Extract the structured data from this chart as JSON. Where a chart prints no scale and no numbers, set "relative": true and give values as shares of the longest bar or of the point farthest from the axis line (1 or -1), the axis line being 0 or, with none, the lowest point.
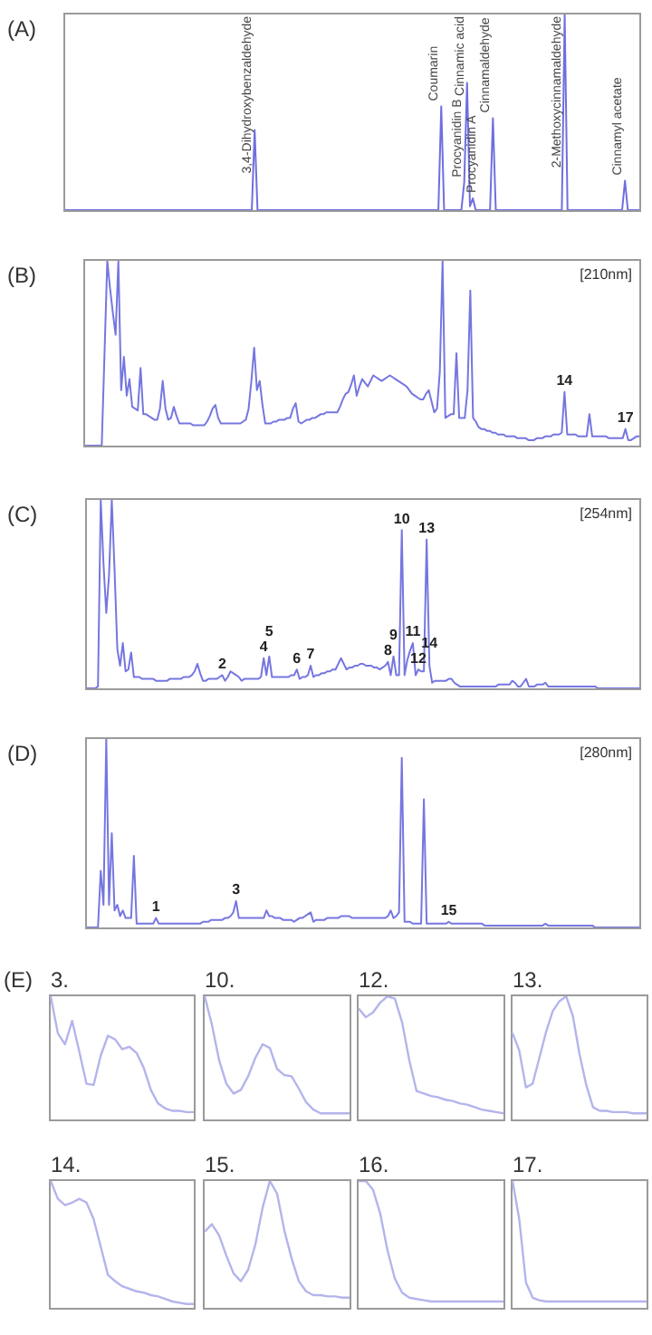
{
  "chart_data": [
    {
      "type": "line",
      "title": "(A)",
      "relative": true,
      "tick_labels": false,
      "annotations": [
        "3,4-Dihydroxybenzaldehyde",
        "Coumarin",
        "Procyanidin B",
        "Cinnamic acid",
        "Procyanidin A",
        "Cinnamaldehyde",
        "2-Methoxycinnamaldehyde",
        "Cinnamyl acetate"
      ],
      "categories": [
        null,
        null,
        null,
        null,
        null,
        null,
        null,
        null,
        null,
        null,
        null,
        null,
        null,
        null,
        null,
        null,
        null,
        null,
        null,
        null,
        null,
        null,
        null,
        null,
        null,
        null,
        null,
        null,
        null,
        null,
        null,
        null,
        null,
        null,
        null,
        null,
        null,
        null,
        null,
        null,
        null,
        null,
        null,
        null,
        null,
        null,
        null,
        null,
        null,
        null,
        null,
        null,
        null,
        null,
        null,
        null,
        null,
        null,
        null,
        null,
        null,
        null,
        null,
        null,
        null,
        null,
        null,
        null,
        null,
        null,
        null,
        null,
        null,
        null,
        null,
        null,
        null,
        null,
        null,
        null,
        null,
        null,
        null,
        null,
        null,
        null,
        null,
        null,
        null,
        null,
        null,
        null,
        null,
        null,
        null,
        null,
        null,
        null,
        null,
        null,
        null,
        null,
        null,
        null,
        null,
        null,
        null,
        null,
        null,
        null,
        null,
        null,
        null,
        null,
        null,
        null,
        null,
        null,
        null,
        null,
        null,
        null,
        null,
        null,
        null,
        null,
        null,
        null,
        null,
        null,
        null,
        null,
        null,
        null,
        null,
        null,
        null,
        null,
        null,
        null,
        null,
        null,
        null,
        null,
        null,
        null,
        null,
        null,
        null,
        null,
        null,
        null,
        null,
        null,
        null,
        null,
        null,
        null,
        null,
        null,
        null,
        null,
        null,
        null,
        null,
        null,
        null,
        null,
        null,
        null,
        null,
        null,
        null,
        null,
        null,
        null,
        null,
        null,
        null,
        null,
        null,
        null,
        null,
        null,
        null,
        null,
        null,
        null,
        null,
        null,
        null,
        null,
        null,
        null,
        null,
        null,
        null,
        null,
        null,
        null,
        null
      ],
      "series": [
        {
          "color": "#6f6fe0",
          "values": [
            0,
            0,
            0,
            0,
            0,
            0,
            0,
            0,
            0,
            0,
            0,
            0,
            0,
            0,
            0,
            0,
            0,
            0,
            0,
            0,
            0,
            0,
            0,
            0,
            0,
            0,
            0,
            0,
            0,
            0,
            0,
            0,
            0,
            0,
            0,
            0,
            0,
            0,
            0,
            0,
            0,
            0,
            0,
            0,
            0,
            0,
            0,
            0,
            0,
            0,
            0,
            0,
            0,
            0,
            0,
            0,
            0,
            0,
            0,
            0,
            0,
            0,
            0,
            0,
            0,
            0,
            0.41,
            0,
            0,
            0,
            0,
            0,
            0,
            0,
            0,
            0,
            0,
            0,
            0,
            0,
            0,
            0,
            0,
            0,
            0,
            0,
            0,
            0,
            0,
            0,
            0,
            0,
            0,
            0,
            0,
            0,
            0,
            0,
            0,
            0,
            0,
            0,
            0,
            0,
            0,
            0,
            0,
            0,
            0,
            0,
            0,
            0,
            0,
            0,
            0,
            0,
            0,
            0,
            0,
            0,
            0,
            0,
            0,
            0,
            0,
            0,
            0,
            0,
            0,
            0,
            0,
            0.53,
            0,
            0,
            0,
            0,
            0,
            0,
            0,
            0.14,
            0.65,
            0.02,
            0.06,
            0,
            0,
            0,
            0,
            0,
            0,
            0.47,
            0,
            0,
            0,
            0,
            0,
            0,
            0,
            0,
            0,
            0,
            0,
            0,
            0,
            0,
            0,
            0,
            0,
            0,
            0,
            0,
            0,
            0,
            0,
            0,
            1,
            0,
            0,
            0,
            0,
            0,
            0,
            0,
            0,
            0,
            0,
            0,
            0,
            0,
            0,
            0,
            0,
            0,
            0,
            0,
            0,
            0.15,
            0,
            0,
            0,
            0,
            0
          ]
        }
      ]
    },
    {
      "type": "line",
      "title": "(B)",
      "relative": true,
      "tick_labels": false,
      "annotations": [
        "[210nm]",
        "14",
        "17"
      ],
      "categories": [
        null,
        null,
        null,
        null,
        null,
        null,
        null,
        null,
        null,
        null,
        null,
        null,
        null,
        null,
        null,
        null,
        null,
        null,
        null,
        null,
        null,
        null,
        null,
        null,
        null,
        null,
        null,
        null,
        null,
        null,
        null,
        null,
        null,
        null,
        null,
        null,
        null,
        null,
        null,
        null,
        null,
        null,
        null,
        null,
        null,
        null,
        null,
        null,
        null,
        null,
        null,
        null,
        null,
        null,
        null,
        null,
        null,
        null,
        null,
        null,
        null,
        null,
        null,
        null,
        null,
        null,
        null,
        null,
        null,
        null,
        null,
        null,
        null,
        null,
        null,
        null,
        null,
        null,
        null,
        null,
        null,
        null,
        null,
        null,
        null,
        null,
        null,
        null,
        null,
        null,
        null,
        null,
        null,
        null,
        null,
        null,
        null,
        null,
        null,
        null,
        null,
        null,
        null,
        null,
        null,
        null,
        null,
        null,
        null,
        null,
        null,
        null,
        null,
        null,
        null,
        null,
        null,
        null,
        null,
        null,
        null,
        null,
        null,
        null,
        null,
        null,
        null,
        null,
        null,
        null,
        null,
        null,
        null,
        null,
        null,
        null,
        null,
        null,
        null,
        null,
        null,
        null,
        null,
        null,
        null,
        null,
        null,
        null,
        null,
        null,
        null,
        null,
        null,
        null,
        null,
        null,
        null,
        null,
        null,
        null,
        null,
        null,
        null,
        null,
        null,
        null,
        null,
        null,
        null,
        null,
        null,
        null,
        null,
        null,
        null,
        null,
        null,
        null,
        null,
        null,
        null,
        null,
        null,
        null,
        null,
        null,
        null,
        null,
        null,
        null,
        null,
        null,
        null,
        null,
        null,
        null,
        null,
        null,
        null,
        null,
        null
      ],
      "series": [
        {
          "color": "#7676e0",
          "values": [
            0,
            0,
            0,
            0,
            0,
            0,
            0,
            0.5,
            1,
            0.85,
            0.72,
            0.6,
            1,
            0.3,
            0.48,
            0.27,
            0.36,
            0.21,
            0.2,
            0.19,
            0.42,
            0.17,
            0.17,
            0.16,
            0.15,
            0.14,
            0.14,
            0.2,
            0.35,
            0.2,
            0.14,
            0.15,
            0.21,
            0.16,
            0.12,
            0.12,
            0.12,
            0.12,
            0.12,
            0.11,
            0.11,
            0.11,
            0.11,
            0.11,
            0.13,
            0.16,
            0.2,
            0.22,
            0.15,
            0.12,
            0.12,
            0.12,
            0.12,
            0.12,
            0.12,
            0.12,
            0.12,
            0.13,
            0.14,
            0.2,
            0.35,
            0.53,
            0.3,
            0.35,
            0.22,
            0.12,
            0.12,
            0.12,
            0.13,
            0.13,
            0.14,
            0.14,
            0.14,
            0.15,
            0.15,
            0.2,
            0.23,
            0.13,
            0.12,
            0.13,
            0.14,
            0.14,
            0.15,
            0.15,
            0.16,
            0.17,
            0.17,
            0.18,
            0.18,
            0.18,
            0.18,
            0.18,
            0.21,
            0.25,
            0.28,
            0.29,
            0.33,
            0.38,
            0.27,
            0.32,
            0.36,
            0.34,
            0.32,
            0.35,
            0.38,
            0.37,
            0.36,
            0.35,
            0.36,
            0.37,
            0.38,
            0.37,
            0.36,
            0.35,
            0.34,
            0.33,
            0.32,
            0.3,
            0.28,
            0.27,
            0.26,
            0.25,
            0.25,
            0.28,
            0.3,
            0.24,
            0.18,
            0.2,
            0.4,
            1,
            0.15,
            0.16,
            0.17,
            0.17,
            0.5,
            0.15,
            0.15,
            0.15,
            0.3,
            0.84,
            0.15,
            0.13,
            0.1,
            0.09,
            0.09,
            0.08,
            0.08,
            0.07,
            0.07,
            0.06,
            0.06,
            0.06,
            0.05,
            0.05,
            0.05,
            0.05,
            0.04,
            0.04,
            0.04,
            0.04,
            0.03,
            0.03,
            0.03,
            0.04,
            0.04,
            0.04,
            0.05,
            0.05,
            0.05,
            0.06,
            0.06,
            0.06,
            0.07,
            0.29,
            0.06,
            0.06,
            0.06,
            0.06,
            0.05,
            0.05,
            0.05,
            0.05,
            0.17,
            0.05,
            0.05,
            0.05,
            0.05,
            0.05,
            0.05,
            0.04,
            0.04,
            0.04,
            0.04,
            0.04,
            0.04,
            0.09,
            0.03,
            0.03,
            0.04,
            0.05,
            0.05
          ]
        }
      ]
    },
    {
      "type": "line",
      "title": "(C)",
      "relative": true,
      "tick_labels": false,
      "annotations": [
        "[254nm]",
        "2",
        "4",
        "5",
        "6",
        "7",
        "8",
        "9",
        "10",
        "11",
        "12",
        "13",
        "14"
      ],
      "categories": [
        null,
        null,
        null,
        null,
        null,
        null,
        null,
        null,
        null,
        null,
        null,
        null,
        null,
        null,
        null,
        null,
        null,
        null,
        null,
        null,
        null,
        null,
        null,
        null,
        null,
        null,
        null,
        null,
        null,
        null,
        null,
        null,
        null,
        null,
        null,
        null,
        null,
        null,
        null,
        null,
        null,
        null,
        null,
        null,
        null,
        null,
        null,
        null,
        null,
        null,
        null,
        null,
        null,
        null,
        null,
        null,
        null,
        null,
        null,
        null,
        null,
        null,
        null,
        null,
        null,
        null,
        null,
        null,
        null,
        null,
        null,
        null,
        null,
        null,
        null,
        null,
        null,
        null,
        null,
        null,
        null,
        null,
        null,
        null,
        null,
        null,
        null,
        null,
        null,
        null,
        null,
        null,
        null,
        null,
        null,
        null,
        null,
        null,
        null,
        null,
        null,
        null,
        null,
        null,
        null,
        null,
        null,
        null,
        null,
        null,
        null,
        null,
        null,
        null,
        null,
        null,
        null,
        null,
        null,
        null,
        null,
        null,
        null,
        null,
        null,
        null,
        null,
        null,
        null,
        null,
        null,
        null,
        null,
        null,
        null,
        null,
        null,
        null,
        null,
        null,
        null,
        null,
        null,
        null,
        null,
        null,
        null,
        null,
        null,
        null,
        null,
        null,
        null,
        null,
        null,
        null,
        null,
        null,
        null,
        null,
        null,
        null,
        null,
        null,
        null,
        null,
        null,
        null,
        null,
        null,
        null,
        null,
        null,
        null,
        null,
        null,
        null,
        null,
        null,
        null,
        null,
        null,
        null,
        null,
        null,
        null,
        null,
        null,
        null,
        null,
        null,
        null,
        null,
        null,
        null,
        null,
        null,
        null,
        null,
        null,
        null
      ],
      "series": [
        {
          "color": "#7676e0",
          "values": [
            0,
            0,
            0,
            0,
            0.01,
            1,
            0.66,
            0.4,
            0.6,
            1,
            0.63,
            0.21,
            0.12,
            0.24,
            0.09,
            0.1,
            0.19,
            0.06,
            0.06,
            0.06,
            0.05,
            0.05,
            0.05,
            0.05,
            0.05,
            0.04,
            0.04,
            0.04,
            0.04,
            0.04,
            0.05,
            0.05,
            0.05,
            0.05,
            0.05,
            0.06,
            0.06,
            0.06,
            0.07,
            0.09,
            0.13,
            0.08,
            0.04,
            0.04,
            0.05,
            0.05,
            0.05,
            0.05,
            0.06,
            0.07,
            0.04,
            0.06,
            0.09,
            0.08,
            0.07,
            0.06,
            0.04,
            0.05,
            0.05,
            0.05,
            0.05,
            0.05,
            0.05,
            0.06,
            0.16,
            0.07,
            0.17,
            0.06,
            0.06,
            0.06,
            0.06,
            0.06,
            0.06,
            0.06,
            0.07,
            0.07,
            0.1,
            0.05,
            0.06,
            0.06,
            0.07,
            0.12,
            0.06,
            0.07,
            0.07,
            0.08,
            0.08,
            0.09,
            0.09,
            0.1,
            0.1,
            0.13,
            0.16,
            0.13,
            0.1,
            0.11,
            0.11,
            0.12,
            0.12,
            0.13,
            0.13,
            0.12,
            0.12,
            0.12,
            0.11,
            0.11,
            0.1,
            0.11,
            0.12,
            0.14,
            0.07,
            0.17,
            0.07,
            0.07,
            0.84,
            0.07,
            0.15,
            0.2,
            0.24,
            0.07,
            0.1,
            0.09,
            0.09,
            0.79,
            0.12,
            0.03,
            0.04,
            0.04,
            0.04,
            0.04,
            0.04,
            0.05,
            0.05,
            0.03,
            0.02,
            0.01,
            0.01,
            0.01,
            0.01,
            0.01,
            0.01,
            0.01,
            0.01,
            0.01,
            0.01,
            0.01,
            0.01,
            0.01,
            0.01,
            0.02,
            0.02,
            0.02,
            0.02,
            0.02,
            0.04,
            0.03,
            0.01,
            0.01,
            0.03,
            0.05,
            0.01,
            0.01,
            0.01,
            0.02,
            0.02,
            0.02,
            0.03,
            0.01,
            0.01,
            0.01,
            0.01,
            0.01,
            0.01,
            0.01,
            0.01,
            0.01,
            0.01,
            0.01,
            0.01,
            0.01,
            0.01,
            0.01,
            0.01,
            0.01,
            0.01,
            0,
            0,
            0,
            0,
            0,
            0,
            0,
            0,
            0,
            0,
            0,
            0,
            0,
            0,
            0,
            0
          ]
        }
      ]
    },
    {
      "type": "line",
      "title": "(D)",
      "relative": true,
      "tick_labels": false,
      "annotations": [
        "[280nm]",
        "1",
        "3",
        "15"
      ],
      "categories": [
        null,
        null,
        null,
        null,
        null,
        null,
        null,
        null,
        null,
        null,
        null,
        null,
        null,
        null,
        null,
        null,
        null,
        null,
        null,
        null,
        null,
        null,
        null,
        null,
        null,
        null,
        null,
        null,
        null,
        null,
        null,
        null,
        null,
        null,
        null,
        null,
        null,
        null,
        null,
        null,
        null,
        null,
        null,
        null,
        null,
        null,
        null,
        null,
        null,
        null,
        null,
        null,
        null,
        null,
        null,
        null,
        null,
        null,
        null,
        null,
        null,
        null,
        null,
        null,
        null,
        null,
        null,
        null,
        null,
        null,
        null,
        null,
        null,
        null,
        null,
        null,
        null,
        null,
        null,
        null,
        null,
        null,
        null,
        null,
        null,
        null,
        null,
        null,
        null,
        null,
        null,
        null,
        null,
        null,
        null,
        null,
        null,
        null,
        null,
        null,
        null,
        null,
        null,
        null,
        null,
        null,
        null,
        null,
        null,
        null,
        null,
        null,
        null,
        null,
        null,
        null,
        null,
        null,
        null,
        null,
        null,
        null,
        null,
        null,
        null,
        null,
        null,
        null,
        null,
        null,
        null,
        null,
        null,
        null,
        null,
        null,
        null,
        null,
        null,
        null,
        null,
        null,
        null,
        null,
        null,
        null,
        null,
        null,
        null,
        null,
        null,
        null,
        null,
        null,
        null,
        null,
        null,
        null,
        null,
        null,
        null,
        null,
        null,
        null,
        null,
        null,
        null,
        null,
        null,
        null,
        null,
        null,
        null,
        null,
        null,
        null,
        null,
        null,
        null,
        null,
        null,
        null,
        null,
        null,
        null,
        null,
        null,
        null,
        null,
        null,
        null,
        null,
        null,
        null,
        null,
        null,
        null,
        null,
        null,
        null,
        null
      ],
      "series": [
        {
          "color": "#7676e0",
          "values": [
            0,
            0,
            0,
            0,
            0,
            0.3,
            0.12,
            1,
            0.12,
            0.5,
            0.09,
            0.12,
            0.06,
            0.09,
            0.05,
            0.05,
            0.05,
            0.38,
            0.02,
            0.02,
            0.02,
            0.02,
            0.02,
            0.02,
            0.02,
            0.05,
            0.02,
            0.02,
            0.02,
            0.02,
            0.02,
            0.02,
            0.02,
            0.02,
            0.02,
            0.02,
            0.02,
            0.02,
            0.02,
            0.02,
            0.02,
            0.02,
            0.03,
            0.03,
            0.03,
            0.04,
            0.04,
            0.04,
            0.04,
            0.04,
            0.05,
            0.05,
            0.06,
            0.08,
            0.14,
            0.05,
            0.05,
            0.05,
            0.05,
            0.05,
            0.05,
            0.05,
            0.05,
            0.05,
            0.05,
            0.09,
            0.06,
            0.06,
            0.05,
            0.05,
            0.05,
            0.04,
            0.04,
            0.04,
            0.04,
            0.03,
            0.04,
            0.05,
            0.05,
            0.06,
            0.07,
            0.08,
            0.03,
            0.04,
            0.04,
            0.04,
            0.04,
            0.05,
            0.05,
            0.05,
            0.05,
            0.05,
            0.06,
            0.06,
            0.06,
            0.06,
            0.05,
            0.05,
            0.05,
            0.05,
            0.05,
            0.05,
            0.05,
            0.05,
            0.05,
            0.05,
            0.05,
            0.05,
            0.05,
            0.06,
            0.09,
            0.05,
            0.06,
            0.08,
            0.9,
            0.03,
            0.03,
            0.03,
            0.02,
            0.02,
            0.02,
            0.02,
            0.68,
            0.02,
            0.02,
            0.02,
            0.02,
            0.02,
            0.02,
            0.02,
            0.02,
            0.03,
            0.02,
            0.02,
            0.02,
            0.02,
            0.02,
            0.02,
            0.02,
            0.02,
            0.02,
            0.02,
            0.02,
            0.02,
            0.01,
            0.01,
            0.01,
            0.01,
            0.01,
            0.01,
            0.01,
            0.01,
            0.01,
            0.01,
            0.01,
            0.01,
            0.01,
            0.01,
            0.01,
            0.01,
            0.01,
            0.01,
            0.01,
            0.01,
            0.01,
            0.01,
            0.02,
            0.01,
            0.01,
            0.01,
            0.01,
            0.01,
            0.01,
            0.01,
            0.01,
            0.01,
            0.01,
            0.01,
            0.01,
            0.01,
            0.01,
            0.01,
            0.01,
            0.01,
            0,
            0,
            0,
            0,
            0,
            0,
            0,
            0,
            0,
            0,
            0,
            0,
            0,
            0,
            0,
            0,
            0
          ]
        }
      ]
    },
    {
      "type": "line",
      "title": "(E)",
      "subtitle": "3.",
      "relative": true,
      "tick_labels": false,
      "categories": [
        null,
        null,
        null,
        null,
        null,
        null,
        null,
        null,
        null,
        null,
        null,
        null,
        null,
        null,
        null,
        null,
        null,
        null,
        null,
        null,
        null
      ],
      "series": [
        {
          "color": "#b4b4ec",
          "values": [
            1,
            0.7,
            0.61,
            0.8,
            0.55,
            0.29,
            0.28,
            0.52,
            0.68,
            0.65,
            0.57,
            0.59,
            0.54,
            0.42,
            0.24,
            0.13,
            0.09,
            0.07,
            0.07,
            0.06,
            0.06
          ]
        }
      ]
    },
    {
      "type": "line",
      "title": "10.",
      "relative": true,
      "tick_labels": false,
      "categories": [
        null,
        null,
        null,
        null,
        null,
        null,
        null,
        null,
        null,
        null,
        null,
        null,
        null,
        null,
        null,
        null,
        null,
        null,
        null,
        null,
        null
      ],
      "series": [
        {
          "color": "#b4b4ec",
          "values": [
            1,
            0.77,
            0.48,
            0.29,
            0.21,
            0.24,
            0.35,
            0.5,
            0.61,
            0.58,
            0.41,
            0.36,
            0.35,
            0.25,
            0.14,
            0.08,
            0.05,
            0.05,
            0.05,
            0.05,
            0.05
          ]
        }
      ]
    },
    {
      "type": "line",
      "title": "12.",
      "relative": true,
      "tick_labels": false,
      "categories": [
        null,
        null,
        null,
        null,
        null,
        null,
        null,
        null,
        null,
        null,
        null,
        null,
        null,
        null,
        null,
        null,
        null,
        null,
        null,
        null,
        null
      ],
      "series": [
        {
          "color": "#b4b4ec",
          "values": [
            0.9,
            0.83,
            0.87,
            0.95,
            1,
            0.98,
            0.79,
            0.48,
            0.23,
            0.21,
            0.19,
            0.18,
            0.16,
            0.15,
            0.13,
            0.12,
            0.1,
            0.08,
            0.07,
            0.06,
            0.05
          ]
        }
      ]
    },
    {
      "type": "line",
      "title": "13.",
      "relative": true,
      "tick_labels": false,
      "categories": [
        null,
        null,
        null,
        null,
        null,
        null,
        null,
        null,
        null,
        null,
        null,
        null,
        null,
        null,
        null,
        null,
        null,
        null,
        null,
        null,
        null
      ],
      "series": [
        {
          "color": "#b4b4ec",
          "values": [
            0.7,
            0.56,
            0.26,
            0.29,
            0.5,
            0.71,
            0.88,
            0.96,
            1,
            0.84,
            0.53,
            0.28,
            0.1,
            0.07,
            0.07,
            0.06,
            0.06,
            0.06,
            0.05,
            0.05,
            0.05
          ]
        }
      ]
    },
    {
      "type": "line",
      "title": "14.",
      "relative": true,
      "tick_labels": false,
      "categories": [
        null,
        null,
        null,
        null,
        null,
        null,
        null,
        null,
        null,
        null,
        null,
        null,
        null,
        null,
        null,
        null,
        null,
        null,
        null,
        null,
        null
      ],
      "series": [
        {
          "color": "#b4b4ec",
          "values": [
            1,
            0.86,
            0.81,
            0.83,
            0.86,
            0.83,
            0.7,
            0.48,
            0.26,
            0.21,
            0.17,
            0.15,
            0.13,
            0.12,
            0.1,
            0.09,
            0.07,
            0.05,
            0.04,
            0.03,
            0.03
          ]
        }
      ]
    },
    {
      "type": "line",
      "title": "15.",
      "relative": true,
      "tick_labels": false,
      "categories": [
        null,
        null,
        null,
        null,
        null,
        null,
        null,
        null,
        null,
        null,
        null,
        null,
        null,
        null,
        null,
        null,
        null,
        null,
        null,
        null,
        null
      ],
      "series": [
        {
          "color": "#b4b4ec",
          "values": [
            0.6,
            0.66,
            0.57,
            0.41,
            0.27,
            0.21,
            0.3,
            0.5,
            0.79,
            1,
            0.9,
            0.61,
            0.39,
            0.21,
            0.13,
            0.1,
            0.1,
            0.09,
            0.09,
            0.08,
            0.08
          ]
        }
      ]
    },
    {
      "type": "line",
      "title": "16.",
      "relative": true,
      "tick_labels": false,
      "categories": [
        null,
        null,
        null,
        null,
        null,
        null,
        null,
        null,
        null,
        null,
        null,
        null,
        null,
        null,
        null,
        null,
        null,
        null,
        null,
        null,
        null
      ],
      "series": [
        {
          "color": "#b4b4ec",
          "values": [
            1,
            1,
            0.93,
            0.74,
            0.45,
            0.23,
            0.12,
            0.08,
            0.07,
            0.06,
            0.05,
            0.05,
            0.05,
            0.05,
            0.05,
            0.05,
            0.05,
            0.05,
            0.05,
            0.05,
            0.05
          ]
        }
      ]
    },
    {
      "type": "line",
      "title": "17.",
      "relative": true,
      "tick_labels": false,
      "categories": [
        null,
        null,
        null,
        null,
        null,
        null,
        null,
        null,
        null,
        null,
        null,
        null,
        null,
        null,
        null,
        null,
        null,
        null,
        null,
        null,
        null
      ],
      "series": [
        {
          "color": "#b4b4ec",
          "values": [
            1,
            0.7,
            0.2,
            0.08,
            0.06,
            0.05,
            0.05,
            0.05,
            0.05,
            0.05,
            0.05,
            0.05,
            0.05,
            0.05,
            0.05,
            0.05,
            0.05,
            0.05,
            0.05,
            0.05,
            0.05
          ]
        }
      ]
    }
  ]
}
